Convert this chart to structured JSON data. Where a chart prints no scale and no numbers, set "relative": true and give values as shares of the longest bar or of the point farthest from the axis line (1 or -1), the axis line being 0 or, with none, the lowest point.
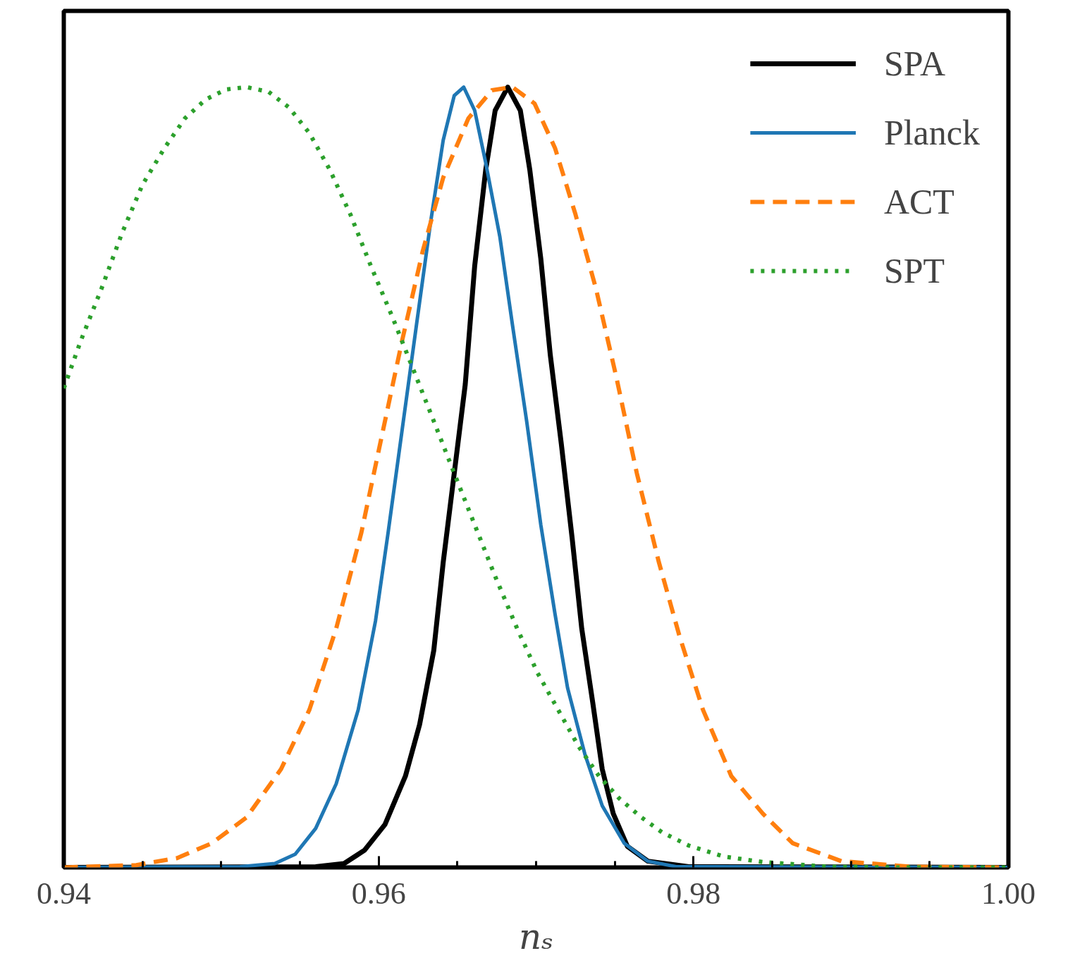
{
  "chart_data": {
    "type": "line",
    "relative": true,
    "xlabel": "nₛ",
    "xlim": [
      0.94,
      1.0
    ],
    "xticks": [
      0.94,
      {
        "value": 0.945,
        "label": null
      },
      {
        "value": 0.95,
        "label": null
      },
      {
        "value": 0.955,
        "label": null
      },
      0.96,
      {
        "value": 0.965,
        "label": null
      },
      {
        "value": 0.97,
        "label": null
      },
      {
        "value": 0.975,
        "label": null
      },
      0.98,
      {
        "value": 0.985,
        "label": null
      },
      {
        "value": 0.99,
        "label": null
      },
      {
        "value": 0.995,
        "label": null
      },
      {
        "value": 1.0,
        "label": "1.00"
      }
    ],
    "legend": "top right",
    "grid": false,
    "tick_labels": "x",
    "series": [
      {
        "name": "SPA",
        "color": "#000000",
        "line_style": "solid",
        "x": [
          0.94,
          0.956,
          0.9578,
          0.9591,
          0.9604,
          0.9617,
          0.9626,
          0.9635,
          0.9641,
          0.9648,
          0.9655,
          0.9661,
          0.9668,
          0.9674,
          0.9682,
          0.969,
          0.9696,
          0.9703,
          0.9709,
          0.9716,
          0.9723,
          0.9729,
          0.9736,
          0.9742,
          0.9749,
          0.9758,
          0.9771,
          0.9797,
          1.0
        ],
        "values": [
          0,
          0.001,
          0.005,
          0.022,
          0.055,
          0.117,
          0.183,
          0.278,
          0.391,
          0.505,
          0.619,
          0.771,
          0.894,
          0.97,
          1,
          0.97,
          0.894,
          0.78,
          0.657,
          0.543,
          0.42,
          0.306,
          0.211,
          0.126,
          0.069,
          0.027,
          0.008,
          0.001,
          0
        ]
      },
      {
        "name": "Planck",
        "color": "#1f77b4",
        "line_style": "solid",
        "x": [
          0.94,
          0.9512,
          0.9534,
          0.9547,
          0.956,
          0.9573,
          0.9587,
          0.9598,
          0.9606,
          0.9615,
          0.9624,
          0.9633,
          0.9641,
          0.9648,
          0.9654,
          0.9661,
          0.9668,
          0.9677,
          0.9685,
          0.9694,
          0.9703,
          0.9712,
          0.972,
          0.9731,
          0.9742,
          0.9756,
          0.9771,
          0.9789,
          1.0
        ],
        "values": [
          0,
          0.001,
          0.005,
          0.017,
          0.05,
          0.107,
          0.202,
          0.316,
          0.429,
          0.562,
          0.695,
          0.827,
          0.932,
          0.989,
          1,
          0.97,
          0.903,
          0.808,
          0.695,
          0.572,
          0.439,
          0.325,
          0.23,
          0.145,
          0.079,
          0.031,
          0.008,
          0.001,
          0
        ]
      },
      {
        "name": "ACT",
        "color": "#ff7f0e",
        "line_style": "dashed",
        "x": [
          0.94,
          0.9446,
          0.9472,
          0.9494,
          0.9516,
          0.9538,
          0.9556,
          0.9573,
          0.9589,
          0.9602,
          0.9615,
          0.9628,
          0.9641,
          0.9657,
          0.9672,
          0.9685,
          0.9699,
          0.9712,
          0.9725,
          0.9738,
          0.9751,
          0.9764,
          0.9778,
          0.9791,
          0.9806,
          0.9824,
          0.9844,
          0.9863,
          0.9894,
          0.9938,
          1.0
        ],
        "values": [
          0,
          0.003,
          0.012,
          0.031,
          0.064,
          0.126,
          0.202,
          0.306,
          0.429,
          0.553,
          0.676,
          0.79,
          0.884,
          0.96,
          0.996,
          1,
          0.979,
          0.922,
          0.837,
          0.742,
          0.628,
          0.505,
          0.391,
          0.297,
          0.202,
          0.117,
          0.069,
          0.031,
          0.008,
          0.001,
          0
        ]
      },
      {
        "name": "SPT",
        "color": "#2ca02c",
        "line_style": "dotted",
        "x": [
          0.94,
          0.9411,
          0.9424,
          0.9437,
          0.945,
          0.9464,
          0.9477,
          0.949,
          0.9503,
          0.9516,
          0.953,
          0.9543,
          0.9556,
          0.9569,
          0.9582,
          0.9595,
          0.9609,
          0.9622,
          0.9635,
          0.9648,
          0.9661,
          0.9674,
          0.9688,
          0.9701,
          0.9714,
          0.9727,
          0.974,
          0.9753,
          0.9767,
          0.978,
          0.9797,
          0.9819,
          0.9844,
          0.9885,
          0.9929,
          1.0
        ],
        "values": [
          0.614,
          0.676,
          0.742,
          0.813,
          0.875,
          0.922,
          0.96,
          0.984,
          0.997,
          1,
          0.994,
          0.974,
          0.941,
          0.894,
          0.837,
          0.771,
          0.704,
          0.638,
          0.572,
          0.505,
          0.439,
          0.373,
          0.306,
          0.249,
          0.202,
          0.155,
          0.117,
          0.088,
          0.064,
          0.045,
          0.028,
          0.014,
          0.007,
          0.001,
          0,
          0
        ]
      }
    ]
  }
}
